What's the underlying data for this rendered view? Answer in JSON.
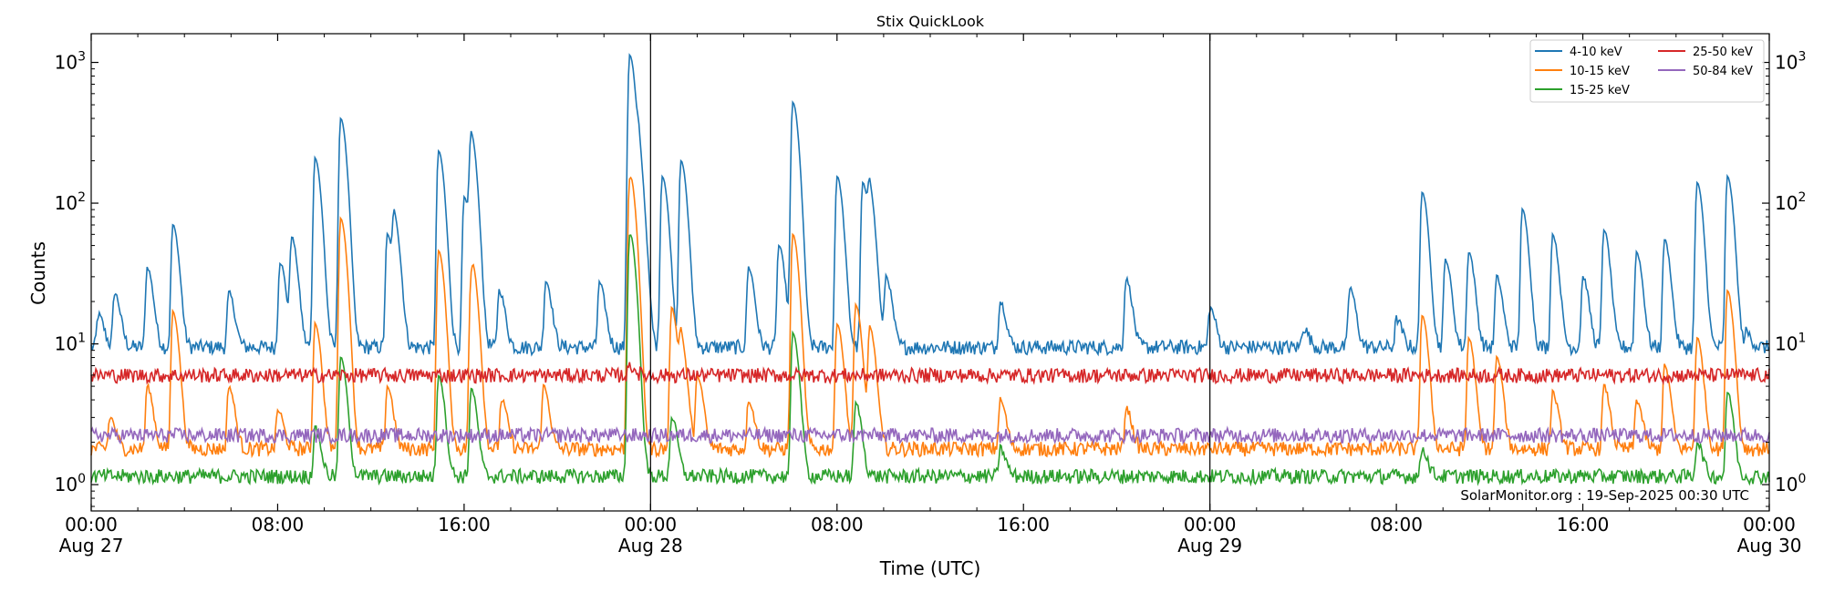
{
  "chart_data": {
    "type": "line",
    "title": "Stix QuickLook",
    "xlabel": "Time (UTC)",
    "ylabel": "Counts",
    "yscale": "log",
    "ylim": [
      0.65,
      1600
    ],
    "x_range_hours": [
      0,
      72
    ],
    "x_ticks": [
      {
        "h": 0,
        "label": "00:00",
        "sub": "Aug 27"
      },
      {
        "h": 8,
        "label": "08:00",
        "sub": ""
      },
      {
        "h": 16,
        "label": "16:00",
        "sub": ""
      },
      {
        "h": 24,
        "label": "00:00",
        "sub": "Aug 28"
      },
      {
        "h": 32,
        "label": "08:00",
        "sub": ""
      },
      {
        "h": 40,
        "label": "16:00",
        "sub": ""
      },
      {
        "h": 48,
        "label": "00:00",
        "sub": "Aug 29"
      },
      {
        "h": 56,
        "label": "08:00",
        "sub": ""
      },
      {
        "h": 64,
        "label": "16:00",
        "sub": ""
      },
      {
        "h": 72,
        "label": "00:00",
        "sub": "Aug 30"
      }
    ],
    "y_ticks": [
      {
        "value": 1,
        "base": "10",
        "exp": "0"
      },
      {
        "value": 10,
        "base": "10",
        "exp": "1"
      },
      {
        "value": 100,
        "base": "10",
        "exp": "2"
      },
      {
        "value": 1000,
        "base": "10",
        "exp": "3"
      }
    ],
    "day_boundaries_hours": [
      24,
      48
    ],
    "legend_position": "top-right",
    "series": [
      {
        "name": "4-10 keV",
        "color": "#1f77b4",
        "baseline": 9.5,
        "peaks": [
          [
            0.3,
            16
          ],
          [
            1.0,
            23
          ],
          [
            2.4,
            35
          ],
          [
            3.5,
            70
          ],
          [
            5.9,
            23
          ],
          [
            8.1,
            38
          ],
          [
            8.6,
            56
          ],
          [
            9.6,
            210
          ],
          [
            10.7,
            400
          ],
          [
            12.7,
            60
          ],
          [
            13.0,
            70
          ],
          [
            14.9,
            235
          ],
          [
            16.0,
            110
          ],
          [
            16.3,
            285
          ],
          [
            17.5,
            24
          ],
          [
            19.5,
            28
          ],
          [
            21.8,
            27
          ],
          [
            23.1,
            1130
          ],
          [
            23.5,
            150
          ],
          [
            24.5,
            155
          ],
          [
            25.3,
            200
          ],
          [
            28.2,
            35
          ],
          [
            29.5,
            50
          ],
          [
            30.1,
            520
          ],
          [
            32.0,
            155
          ],
          [
            33.1,
            140
          ],
          [
            33.4,
            100
          ],
          [
            34.1,
            30
          ],
          [
            39.0,
            20
          ],
          [
            44.4,
            29
          ],
          [
            48.0,
            18
          ],
          [
            52.0,
            13
          ],
          [
            54.0,
            25
          ],
          [
            56.0,
            15
          ],
          [
            57.1,
            120
          ],
          [
            58.1,
            40
          ],
          [
            59.1,
            45
          ],
          [
            60.3,
            30
          ],
          [
            61.4,
            90
          ],
          [
            62.7,
            60
          ],
          [
            64.0,
            30
          ],
          [
            64.9,
            65
          ],
          [
            66.3,
            45
          ],
          [
            67.5,
            55
          ],
          [
            68.9,
            140
          ],
          [
            70.2,
            155
          ],
          [
            71.0,
            12
          ]
        ]
      },
      {
        "name": "10-15 keV",
        "color": "#ff7f0e",
        "baseline": 1.8,
        "peaks": [
          [
            0.8,
            3
          ],
          [
            2.4,
            5
          ],
          [
            3.5,
            17
          ],
          [
            5.9,
            5
          ],
          [
            8.0,
            3.4
          ],
          [
            9.6,
            14
          ],
          [
            10.7,
            78
          ],
          [
            12.7,
            5
          ],
          [
            14.9,
            46
          ],
          [
            16.3,
            30
          ],
          [
            16.4,
            11
          ],
          [
            17.6,
            4
          ],
          [
            19.4,
            5
          ],
          [
            23.1,
            145
          ],
          [
            23.2,
            17
          ],
          [
            24.9,
            18
          ],
          [
            25.3,
            10
          ],
          [
            26.0,
            6
          ],
          [
            28.2,
            4
          ],
          [
            30.1,
            60
          ],
          [
            32.0,
            14
          ],
          [
            32.8,
            19
          ],
          [
            33.4,
            13
          ],
          [
            39.0,
            4
          ],
          [
            44.4,
            3.5
          ],
          [
            57.1,
            16
          ],
          [
            59.1,
            11
          ],
          [
            60.3,
            8
          ],
          [
            62.7,
            4.5
          ],
          [
            64.9,
            5
          ],
          [
            66.3,
            4
          ],
          [
            67.5,
            7
          ],
          [
            68.9,
            11
          ],
          [
            70.2,
            24
          ]
        ]
      },
      {
        "name": "15-25 keV",
        "color": "#2ca02c",
        "baseline": 1.15,
        "peaks": [
          [
            9.6,
            2.5
          ],
          [
            10.7,
            8
          ],
          [
            14.9,
            6
          ],
          [
            16.3,
            4.8
          ],
          [
            23.1,
            58
          ],
          [
            23.2,
            5
          ],
          [
            24.9,
            3
          ],
          [
            30.1,
            12
          ],
          [
            32.8,
            3.8
          ],
          [
            39.0,
            1.8
          ],
          [
            57.1,
            1.8
          ],
          [
            68.9,
            2
          ],
          [
            70.2,
            4.5
          ]
        ]
      },
      {
        "name": "25-50 keV",
        "color": "#d62728",
        "baseline": 6.0,
        "peaks": [
          [
            23.1,
            7
          ]
        ]
      },
      {
        "name": "50-84 keV",
        "color": "#9467bd",
        "baseline": 2.25,
        "peaks": []
      }
    ],
    "annotation": "SolarMonitor.org : 19-Sep-2025 00:30 UTC"
  }
}
